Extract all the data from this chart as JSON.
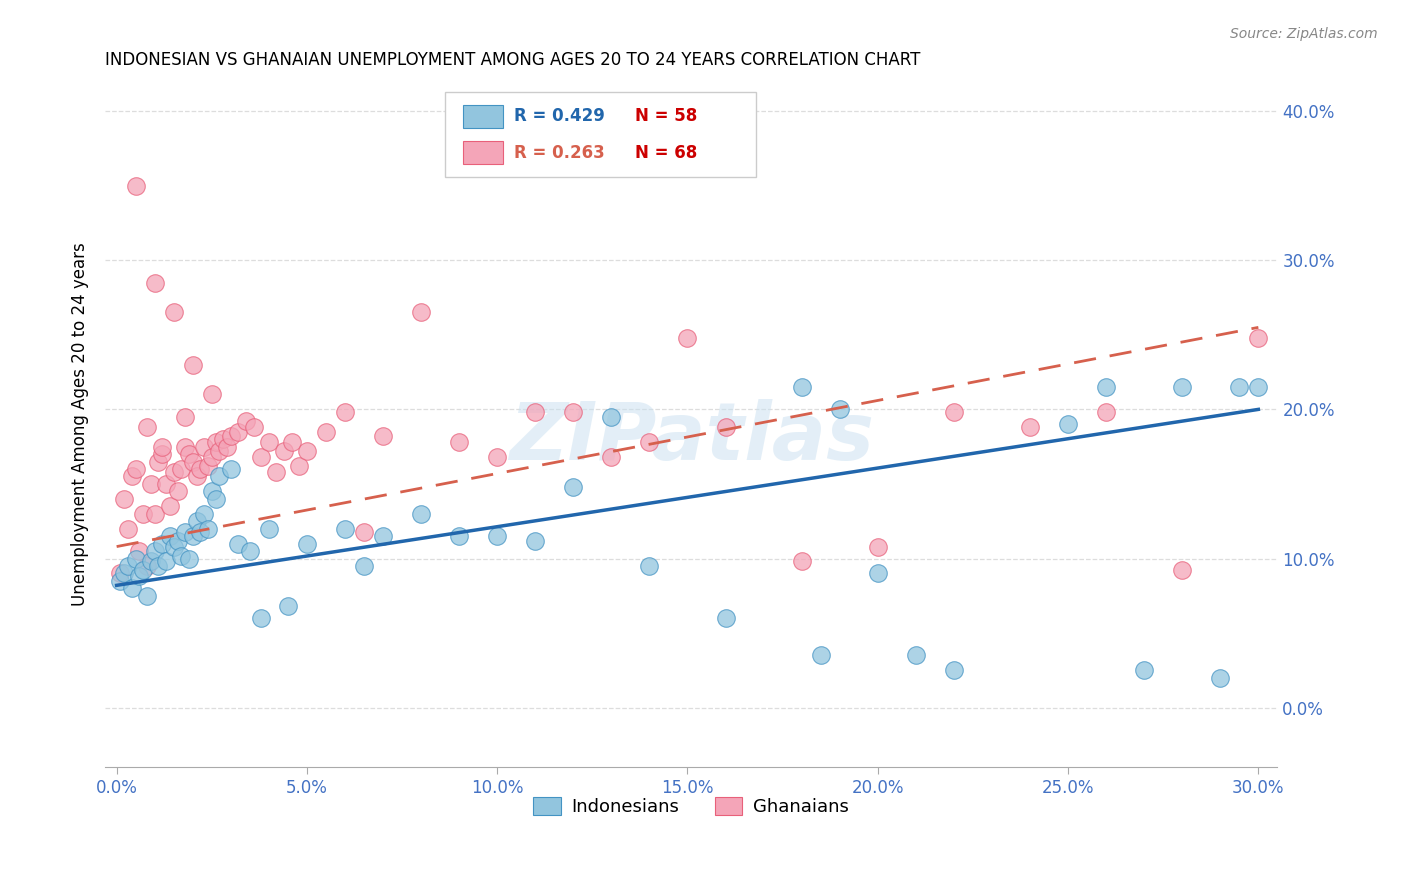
{
  "title": "INDONESIAN VS GHANAIAN UNEMPLOYMENT AMONG AGES 20 TO 24 YEARS CORRELATION CHART",
  "source": "Source: ZipAtlas.com",
  "ylabel": "Unemployment Among Ages 20 to 24 years",
  "watermark_text": "ZIPatlas",
  "legend_blue_R": "R = 0.429",
  "legend_blue_N": "N = 58",
  "legend_pink_R": "R = 0.263",
  "legend_pink_N": "N = 68",
  "legend_label_blue": "Indonesians",
  "legend_label_pink": "Ghanaians",
  "blue_scatter_color": "#92c5de",
  "pink_scatter_color": "#f4a5b8",
  "blue_edge_color": "#4393c3",
  "pink_edge_color": "#e8607a",
  "trendline_blue_color": "#2166ac",
  "trendline_pink_color": "#d6604d",
  "xlim": [
    -0.003,
    0.305
  ],
  "ylim": [
    -0.04,
    0.42
  ],
  "x_ticks": [
    0.0,
    0.05,
    0.1,
    0.15,
    0.2,
    0.25,
    0.3
  ],
  "y_ticks": [
    0.0,
    0.1,
    0.2,
    0.3,
    0.4
  ],
  "indonesians_x": [
    0.001,
    0.002,
    0.003,
    0.004,
    0.005,
    0.006,
    0.007,
    0.008,
    0.009,
    0.01,
    0.011,
    0.012,
    0.013,
    0.014,
    0.015,
    0.016,
    0.017,
    0.018,
    0.019,
    0.02,
    0.021,
    0.022,
    0.023,
    0.024,
    0.025,
    0.026,
    0.027,
    0.03,
    0.032,
    0.035,
    0.038,
    0.04,
    0.045,
    0.05,
    0.06,
    0.065,
    0.07,
    0.08,
    0.09,
    0.1,
    0.11,
    0.12,
    0.14,
    0.16,
    0.185,
    0.19,
    0.2,
    0.21,
    0.22,
    0.25,
    0.26,
    0.27,
    0.28,
    0.29,
    0.295,
    0.3,
    0.18,
    0.13
  ],
  "indonesians_y": [
    0.085,
    0.09,
    0.095,
    0.08,
    0.1,
    0.088,
    0.092,
    0.075,
    0.098,
    0.105,
    0.095,
    0.11,
    0.098,
    0.115,
    0.108,
    0.112,
    0.102,
    0.118,
    0.1,
    0.115,
    0.125,
    0.118,
    0.13,
    0.12,
    0.145,
    0.14,
    0.155,
    0.16,
    0.11,
    0.105,
    0.06,
    0.12,
    0.068,
    0.11,
    0.12,
    0.095,
    0.115,
    0.13,
    0.115,
    0.115,
    0.112,
    0.148,
    0.095,
    0.06,
    0.035,
    0.2,
    0.09,
    0.035,
    0.025,
    0.19,
    0.215,
    0.025,
    0.215,
    0.02,
    0.215,
    0.215,
    0.215,
    0.195
  ],
  "ghanaians_x": [
    0.001,
    0.002,
    0.003,
    0.004,
    0.005,
    0.006,
    0.007,
    0.008,
    0.009,
    0.01,
    0.011,
    0.012,
    0.013,
    0.014,
    0.015,
    0.016,
    0.017,
    0.018,
    0.019,
    0.02,
    0.021,
    0.022,
    0.023,
    0.024,
    0.025,
    0.026,
    0.027,
    0.028,
    0.029,
    0.03,
    0.032,
    0.034,
    0.036,
    0.038,
    0.04,
    0.042,
    0.044,
    0.046,
    0.048,
    0.05,
    0.055,
    0.06,
    0.065,
    0.07,
    0.08,
    0.09,
    0.1,
    0.11,
    0.12,
    0.13,
    0.14,
    0.15,
    0.16,
    0.18,
    0.2,
    0.22,
    0.24,
    0.26,
    0.28,
    0.3,
    0.005,
    0.01,
    0.015,
    0.02,
    0.025,
    0.008,
    0.012,
    0.018
  ],
  "ghanaians_y": [
    0.09,
    0.14,
    0.12,
    0.155,
    0.16,
    0.105,
    0.13,
    0.095,
    0.15,
    0.13,
    0.165,
    0.17,
    0.15,
    0.135,
    0.158,
    0.145,
    0.16,
    0.175,
    0.17,
    0.165,
    0.155,
    0.16,
    0.175,
    0.162,
    0.168,
    0.178,
    0.172,
    0.18,
    0.175,
    0.182,
    0.185,
    0.192,
    0.188,
    0.168,
    0.178,
    0.158,
    0.172,
    0.178,
    0.162,
    0.172,
    0.185,
    0.198,
    0.118,
    0.182,
    0.265,
    0.178,
    0.168,
    0.198,
    0.198,
    0.168,
    0.178,
    0.248,
    0.188,
    0.098,
    0.108,
    0.198,
    0.188,
    0.198,
    0.092,
    0.248,
    0.35,
    0.285,
    0.265,
    0.23,
    0.21,
    0.188,
    0.175,
    0.195
  ],
  "trendline_blue_x0": 0.0,
  "trendline_blue_y0": 0.082,
  "trendline_blue_x1": 0.3,
  "trendline_blue_y1": 0.2,
  "trendline_pink_x0": 0.0,
  "trendline_pink_y0": 0.108,
  "trendline_pink_x1": 0.3,
  "trendline_pink_y1": 0.255
}
